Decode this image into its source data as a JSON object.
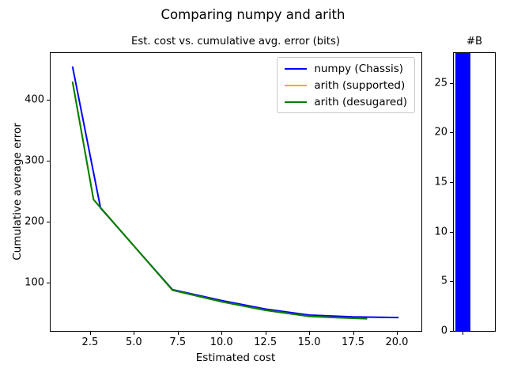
{
  "figure": {
    "title": "Comparing numpy and arith",
    "background": "#ffffff",
    "text_color": "#000000"
  },
  "chart_data": [
    {
      "type": "line",
      "title": "Est. cost vs. cumulative avg. error (bits)",
      "xlabel": "Estimated cost",
      "ylabel": "Cumulative average error",
      "xlim": [
        0.25,
        21.4
      ],
      "ylim": [
        20,
        477
      ],
      "grid": false,
      "legend_position": "upper right",
      "xticks": {
        "values": [
          2.5,
          5,
          7.5,
          10,
          12.5,
          15,
          17.5,
          20
        ],
        "labels": [
          "2.5",
          "5.0",
          "7.5",
          "10.0",
          "12.5",
          "15.0",
          "17.5",
          "20.0"
        ]
      },
      "yticks": {
        "values": [
          100,
          200,
          300,
          400
        ],
        "labels": [
          "100",
          "200",
          "300",
          "400"
        ]
      },
      "series": [
        {
          "name": "numpy (Chassis)",
          "color": "#0000ff",
          "points": [
            [
              1.5,
              455
            ],
            [
              3.1,
              222
            ],
            [
              7.2,
              88
            ],
            [
              10,
              70
            ],
            [
              12.5,
              56
            ],
            [
              15,
              46
            ],
            [
              17.5,
              43
            ],
            [
              20.1,
              42
            ]
          ]
        },
        {
          "name": "arith (supported)",
          "color": "#ffa500",
          "points": [
            [
              1.5,
              430
            ],
            [
              2.7,
              236
            ],
            [
              7.2,
              87
            ],
            [
              10,
              68
            ],
            [
              12.5,
              54
            ],
            [
              15,
              44
            ],
            [
              16.5,
              42
            ],
            [
              18.3,
              40
            ]
          ]
        },
        {
          "name": "arith (desugared)",
          "color": "#008000",
          "points": [
            [
              1.5,
              430
            ],
            [
              2.7,
              236
            ],
            [
              7.2,
              87
            ],
            [
              10,
              68
            ],
            [
              12.5,
              54
            ],
            [
              15,
              44
            ],
            [
              16.5,
              42
            ],
            [
              18.3,
              40
            ]
          ]
        }
      ]
    },
    {
      "type": "bar",
      "title": "#B",
      "categories": [
        ""
      ],
      "values": [
        28
      ],
      "bar_color": "#0000ff",
      "ylim": [
        0,
        28
      ],
      "yticks": {
        "values": [
          0,
          5,
          10,
          15,
          20,
          25
        ],
        "labels": [
          "0",
          "5",
          "10",
          "15",
          "20",
          "25"
        ]
      }
    }
  ]
}
